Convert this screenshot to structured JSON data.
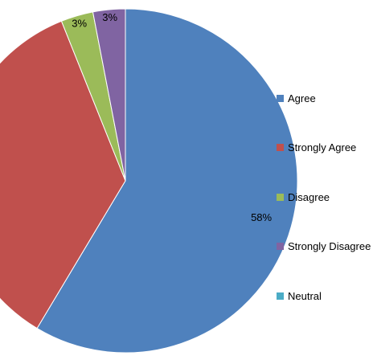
{
  "chart_data": {
    "type": "pie",
    "title": "",
    "start_angle_deg": 0,
    "direction": "clockwise",
    "legend_position": "right",
    "slices": [
      {
        "label": "Agree",
        "value": 58,
        "display": "58%",
        "color": "#4F81BD"
      },
      {
        "label": "Strongly Agree",
        "value": 35,
        "display": "35%",
        "color": "#C0504D"
      },
      {
        "label": "Disagree",
        "value": 3,
        "display": "3%",
        "color": "#9BBB59"
      },
      {
        "label": "Strongly Disagree",
        "value": 3,
        "display": "3%",
        "color": "#8064A2"
      },
      {
        "label": "Neutral",
        "value": 0,
        "display": "",
        "color": "#4BACC6"
      }
    ]
  }
}
